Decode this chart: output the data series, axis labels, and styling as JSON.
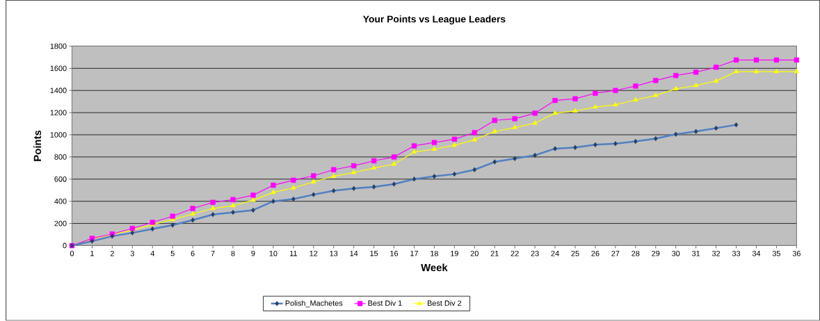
{
  "chart_data": {
    "type": "line",
    "title": "Your Points vs League Leaders",
    "xlabel": "Week",
    "ylabel": "Points",
    "x": [
      0,
      1,
      2,
      3,
      4,
      5,
      6,
      7,
      8,
      9,
      10,
      11,
      12,
      13,
      14,
      15,
      16,
      17,
      18,
      19,
      20,
      21,
      22,
      23,
      24,
      25,
      26,
      27,
      28,
      29,
      30,
      31,
      32,
      33,
      34,
      35,
      36
    ],
    "xlim": [
      0,
      36
    ],
    "xticks": [
      0,
      1,
      2,
      3,
      4,
      5,
      6,
      7,
      8,
      9,
      10,
      11,
      12,
      13,
      14,
      15,
      16,
      17,
      18,
      19,
      20,
      21,
      22,
      23,
      24,
      25,
      26,
      27,
      28,
      29,
      30,
      31,
      32,
      33,
      34,
      35,
      36
    ],
    "ylim": [
      0,
      1800
    ],
    "yticks": [
      0,
      200,
      400,
      600,
      800,
      1000,
      1200,
      1400,
      1600,
      1800
    ],
    "grid": "y",
    "legend": "bottom",
    "series": [
      {
        "name": "Polish_Machetes",
        "color": "#4f7fc4",
        "marker": "diamond",
        "values": [
          0,
          40,
          85,
          115,
          150,
          185,
          230,
          280,
          300,
          320,
          400,
          420,
          460,
          495,
          515,
          530,
          555,
          600,
          625,
          645,
          685,
          755,
          785,
          815,
          875,
          885,
          910,
          920,
          940,
          965,
          1005,
          1030,
          1060,
          1090,
          null,
          null,
          null
        ]
      },
      {
        "name": "Best Div 1",
        "color": "#ff00ff",
        "marker": "square",
        "values": [
          0,
          65,
          105,
          155,
          210,
          265,
          335,
          390,
          415,
          455,
          545,
          590,
          630,
          685,
          720,
          765,
          800,
          900,
          930,
          960,
          1020,
          1130,
          1145,
          1195,
          1310,
          1325,
          1375,
          1400,
          1440,
          1490,
          1535,
          1565,
          1610,
          1675,
          1675,
          1675,
          1675
        ]
      },
      {
        "name": "Best Div 2",
        "color": "#ffff00",
        "marker": "triangle",
        "values": [
          0,
          60,
          100,
          140,
          190,
          235,
          285,
          335,
          360,
          410,
          480,
          520,
          575,
          625,
          660,
          700,
          735,
          845,
          870,
          905,
          955,
          1030,
          1065,
          1105,
          1195,
          1215,
          1250,
          1270,
          1315,
          1355,
          1415,
          1445,
          1485,
          1570,
          1570,
          1570,
          1570
        ]
      }
    ]
  }
}
